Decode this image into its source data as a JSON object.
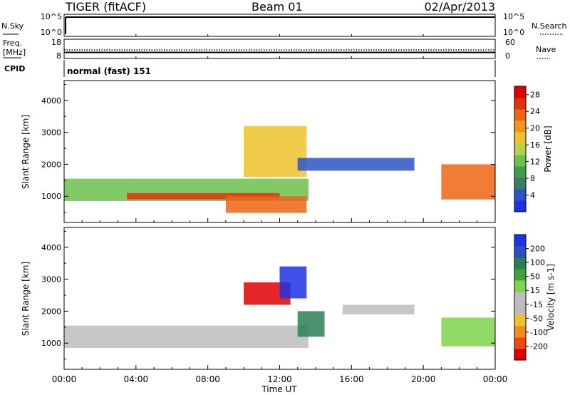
{
  "header": {
    "radar": "TIGER (fitACF)",
    "beam": "Beam 01",
    "date": "02/Apr/2013"
  },
  "panels": {
    "nsky": {
      "left_label": "N.Sky",
      "left_ticks": [
        "10^5",
        "10^0"
      ],
      "right_ticks": [
        "10^5",
        "10^0"
      ],
      "right_label": "N.Search"
    },
    "freq": {
      "label_line1": "Freq.",
      "label_line2": "[MHz]",
      "left_ticks": [
        "18",
        "8"
      ],
      "right_ticks": [
        "60",
        "0"
      ],
      "right_label": "Nave"
    },
    "cpid": {
      "label": "CPID",
      "value": "normal (fast) 151"
    }
  },
  "colors": {
    "power": [
      "#1f32e6",
      "#2c55c4",
      "#3c7a6a",
      "#3f9c49",
      "#6cc14e",
      "#b4d342",
      "#eec32a",
      "#f2941c",
      "#ef6513",
      "#e5300c",
      "#e00000"
    ],
    "velocity": [
      "#e00000",
      "#ee4a10",
      "#f28a1c",
      "#eec32a",
      "#bdbdbd",
      "#bdbdbd",
      "#7fd34b",
      "#3ea13b",
      "#2c7f55",
      "#2a50c0",
      "#1f32e6"
    ]
  },
  "chart_data": [
    {
      "type": "heatmap",
      "title": "",
      "xlabel": "Time UT",
      "ylabel": "Slant Range [km]",
      "xlim": [
        "00:00",
        "24:00"
      ],
      "ylim": [
        180,
        4620
      ],
      "x_ticks": [
        "00:00",
        "04:00",
        "08:00",
        "12:00",
        "16:00",
        "20:00",
        "00:00"
      ],
      "y_ticks": [
        1000,
        2000,
        3000,
        4000
      ],
      "colorbar": {
        "label": "Power [dB]",
        "ticks": [
          4,
          8,
          12,
          16,
          20,
          24,
          28
        ],
        "range": [
          0,
          30
        ]
      },
      "regions": [
        {
          "t_start": 0.0,
          "t_end": 13.6,
          "range_start": 850,
          "range_end": 1550,
          "value": 12
        },
        {
          "t_start": 3.5,
          "t_end": 12.0,
          "range_start": 900,
          "range_end": 1100,
          "value": 26
        },
        {
          "t_start": 9.0,
          "t_end": 13.5,
          "range_start": 480,
          "range_end": 1000,
          "value": 22
        },
        {
          "t_start": 10.0,
          "t_end": 13.5,
          "range_start": 1600,
          "range_end": 3200,
          "value": 18
        },
        {
          "t_start": 13.0,
          "t_end": 19.5,
          "range_start": 1800,
          "range_end": 2200,
          "value": 4
        },
        {
          "t_start": 21.0,
          "t_end": 24.0,
          "range_start": 900,
          "range_end": 2000,
          "value": 22
        }
      ]
    },
    {
      "type": "heatmap",
      "title": "",
      "xlabel": "Time UT",
      "ylabel": "Slant Range [km]",
      "xlim": [
        "00:00",
        "24:00"
      ],
      "ylim": [
        180,
        4620
      ],
      "x_ticks": [
        "00:00",
        "04:00",
        "08:00",
        "12:00",
        "16:00",
        "20:00",
        "00:00"
      ],
      "y_ticks": [
        1000,
        2000,
        3000,
        4000
      ],
      "colorbar": {
        "label": "Velocity [m s-1]",
        "ticks": [
          200,
          100,
          50,
          15,
          -15,
          -50,
          -100,
          -200
        ],
        "range": [
          -250,
          250
        ]
      },
      "regions": [
        {
          "t_start": 0.0,
          "t_end": 13.6,
          "range_start": 850,
          "range_end": 1550,
          "value": 0
        },
        {
          "t_start": 10.0,
          "t_end": 12.6,
          "range_start": 2200,
          "range_end": 2900,
          "value": -220
        },
        {
          "t_start": 12.0,
          "t_end": 13.5,
          "range_start": 2400,
          "range_end": 3400,
          "value": 220
        },
        {
          "t_start": 13.0,
          "t_end": 14.5,
          "range_start": 1200,
          "range_end": 2000,
          "value": 120
        },
        {
          "t_start": 15.5,
          "t_end": 19.5,
          "range_start": 1900,
          "range_end": 2200,
          "value": 0
        },
        {
          "t_start": 21.0,
          "t_end": 24.0,
          "range_start": 900,
          "range_end": 1800,
          "value": 40
        }
      ]
    }
  ]
}
